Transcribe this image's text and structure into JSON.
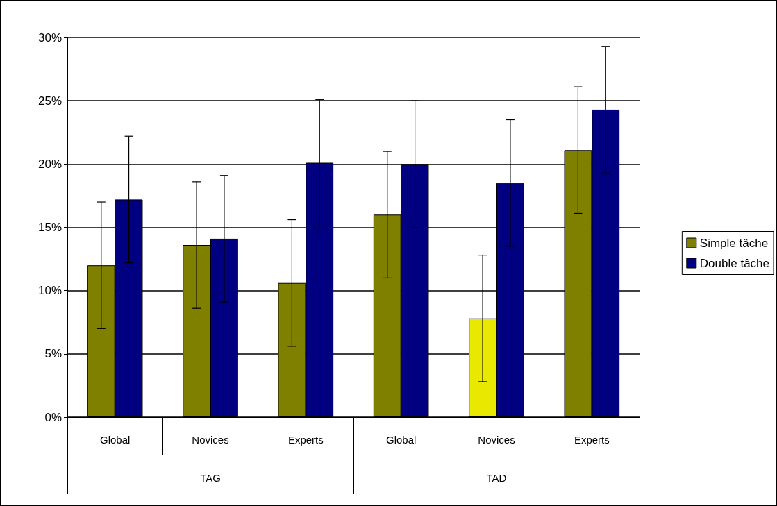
{
  "chart_data": {
    "type": "bar",
    "categories": [
      "Global",
      "Novices",
      "Experts",
      "Global",
      "Novices",
      "Experts"
    ],
    "annotations": [
      "TAG",
      "TAD"
    ],
    "series": [
      {
        "name": "Simple tâche",
        "color": "#808000",
        "colors": [
          "#808000",
          "#808000",
          "#808000",
          "#808000",
          "#e8e800",
          "#808000"
        ],
        "values": [
          12,
          13.6,
          10.6,
          16,
          7.8,
          21.1
        ],
        "errors": [
          5,
          5,
          5,
          5,
          5,
          5
        ]
      },
      {
        "name": "Double tâche",
        "color": "#000080",
        "values": [
          17.2,
          14.1,
          20.1,
          20,
          18.5,
          24.3
        ],
        "errors": [
          5,
          5,
          5,
          5,
          5,
          5
        ]
      }
    ],
    "ylim": [
      0,
      30
    ],
    "yticks": [
      {
        "value": 0,
        "label": "0%"
      },
      {
        "value": 5,
        "label": "5%"
      },
      {
        "value": 10,
        "label": "10%"
      },
      {
        "value": 15,
        "label": "15%"
      },
      {
        "value": 20,
        "label": "20%"
      },
      {
        "value": 25,
        "label": "25%"
      },
      {
        "value": 30,
        "label": "30%"
      }
    ],
    "grid": "y",
    "legend": "right"
  }
}
